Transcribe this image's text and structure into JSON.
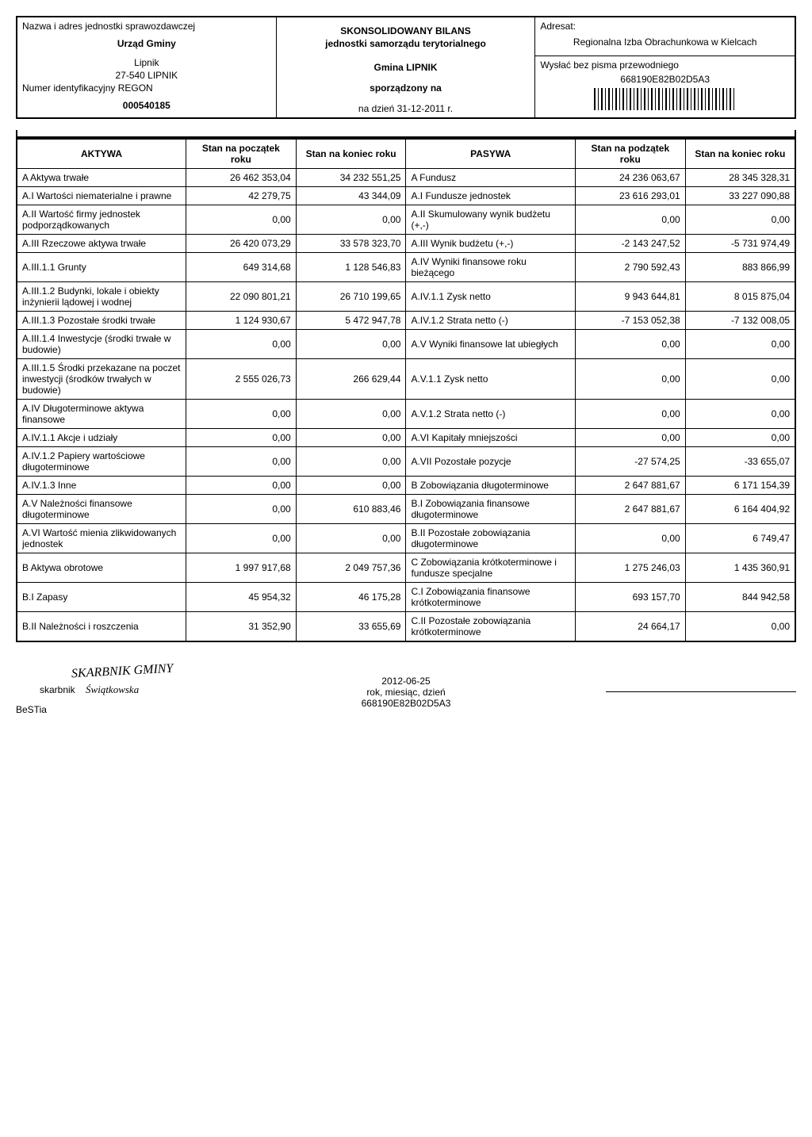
{
  "header": {
    "l1": "Nazwa i adres jednostki sprawozdawczej",
    "urzad": "Urząd Gminy",
    "lipnik": "Lipnik",
    "kod": "27-540 LIPNIK",
    "regon_label": "Numer identyfikacyjny REGON",
    "regon": "000540185",
    "bilans1": "SKONSOLIDOWANY BILANS",
    "bilans2": "jednostki samorządu terytorialnego",
    "gmina": "Gmina LIPNIK",
    "sporz": "sporządzony na",
    "nadz": "na dzień   31-12-2011 r.",
    "adresat_label": "Adresat:",
    "adresat": "Regionalna Izba Obrachunkowa w Kielcach",
    "wyslac": "Wysłać bez pisma przewodniego",
    "kod2": "668190E82B02D5A3"
  },
  "columns": {
    "aktywa": "AKTYWA",
    "stan_pocz": "Stan na początek roku",
    "stan_kon": "Stan na koniec roku",
    "pasywa": "PASYWA",
    "stan_pocz2": "Stan na podzątek roku",
    "stan_kon2": "Stan na koniec roku"
  },
  "rows": [
    {
      "a": "A Aktywa trwałe",
      "v1": "26 462 353,04",
      "v2": "34 232 551,25",
      "p": "A Fundusz",
      "v3": "24 236 063,67",
      "v4": "28 345 328,31"
    },
    {
      "a": "A.I Wartości niematerialne i prawne",
      "v1": "42 279,75",
      "v2": "43 344,09",
      "p": "A.I Fundusze jednostek",
      "v3": "23 616 293,01",
      "v4": "33 227 090,88"
    },
    {
      "a": "A.II Wartość firmy jednostek podporządkowanych",
      "v1": "0,00",
      "v2": "0,00",
      "p": "A.II Skumulowany wynik budżetu (+,-)",
      "v3": "0,00",
      "v4": "0,00"
    },
    {
      "a": "A.III Rzeczowe aktywa trwałe",
      "v1": "26 420 073,29",
      "v2": "33 578 323,70",
      "p": "A.III Wynik budżetu (+,-)",
      "v3": "-2 143 247,52",
      "v4": "-5 731 974,49"
    },
    {
      "a": "A.III.1.1 Grunty",
      "v1": "649 314,68",
      "v2": "1 128 546,83",
      "p": "A.IV Wyniki finansowe roku bieżącego",
      "v3": "2 790 592,43",
      "v4": "883 866,99"
    },
    {
      "a": "A.III.1.2 Budynki, lokale i obiekty inżynierii lądowej i wodnej",
      "v1": "22 090 801,21",
      "v2": "26 710 199,65",
      "p": "A.IV.1.1 Zysk netto",
      "v3": "9 943 644,81",
      "v4": "8 015 875,04"
    },
    {
      "a": "A.III.1.3 Pozostałe środki trwałe",
      "v1": "1 124 930,67",
      "v2": "5 472 947,78",
      "p": "A.IV.1.2 Strata netto (-)",
      "v3": "-7 153 052,38",
      "v4": "-7 132 008,05"
    },
    {
      "a": "A.III.1.4 Inwestycje (środki trwałe w budowie)",
      "v1": "0,00",
      "v2": "0,00",
      "p": "A.V Wyniki finansowe lat ubiegłych",
      "v3": "0,00",
      "v4": "0,00"
    },
    {
      "a": "A.III.1.5 Środki przekazane na poczet inwestycji (środków trwałych w budowie)",
      "v1": "2 555 026,73",
      "v2": "266 629,44",
      "p": "A.V.1.1 Zysk netto",
      "v3": "0,00",
      "v4": "0,00"
    },
    {
      "a": "A.IV Długoterminowe aktywa finansowe",
      "v1": "0,00",
      "v2": "0,00",
      "p": "A.V.1.2 Strata netto (-)",
      "v3": "0,00",
      "v4": "0,00"
    },
    {
      "a": "A.IV.1.1 Akcje i udziały",
      "v1": "0,00",
      "v2": "0,00",
      "p": "A.VI Kapitały mniejszości",
      "v3": "0,00",
      "v4": "0,00"
    },
    {
      "a": "A.IV.1.2 Papiery wartościowe długoterminowe",
      "v1": "0,00",
      "v2": "0,00",
      "p": "A.VII Pozostałe pozycje",
      "v3": "-27 574,25",
      "v4": "-33 655,07"
    },
    {
      "a": "A.IV.1.3 Inne",
      "v1": "0,00",
      "v2": "0,00",
      "p": "B Zobowiązania długoterminowe",
      "v3": "2 647 881,67",
      "v4": "6 171 154,39"
    },
    {
      "a": "A.V Należności finansowe długoterminowe",
      "v1": "0,00",
      "v2": "610 883,46",
      "p": "B.I Zobowiązania finansowe długoterminowe",
      "v3": "2 647 881,67",
      "v4": "6 164 404,92"
    },
    {
      "a": "A.VI Wartość mienia zlikwidowanych jednostek",
      "v1": "0,00",
      "v2": "0,00",
      "p": "B.II Pozostałe zobowiązania długoterminowe",
      "v3": "0,00",
      "v4": "6 749,47"
    },
    {
      "a": "B Aktywa obrotowe",
      "v1": "1 997 917,68",
      "v2": "2 049 757,36",
      "p": "C Zobowiązania krótkoterminowe i fundusze specjalne",
      "v3": "1 275 246,03",
      "v4": "1 435 360,91"
    },
    {
      "a": "B.I Zapasy",
      "v1": "45 954,32",
      "v2": "46 175,28",
      "p": "C.I Zobowiązania finansowe krótkoterminowe",
      "v3": "693 157,70",
      "v4": "844 942,58"
    },
    {
      "a": "B.II Należności i roszczenia",
      "v1": "31 352,90",
      "v2": "33 655,69",
      "p": "C.II Pozostałe zobowiązania krótkoterminowe",
      "v3": "24 664,17",
      "v4": "0,00"
    }
  ],
  "footer": {
    "stamp1": "SKARBNIK GMINY",
    "stamp2": "Świątkowska",
    "skarbnik": "skarbnik",
    "bestia": "BeSTia",
    "date": "2012-06-25",
    "date_label": "rok, miesiąc, dzień",
    "code": "668190E82B02D5A3"
  }
}
